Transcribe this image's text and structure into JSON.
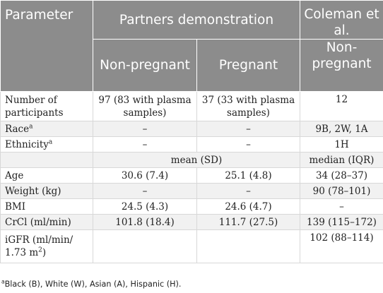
{
  "header": {
    "parameter": "Parameter",
    "partners": "Partners demonstration",
    "coleman": "Coleman et al.",
    "non_pregnant": "Non-pregnant",
    "pregnant": "Pregnant",
    "coleman_sub": "Non-pregnant"
  },
  "rows": {
    "participants": {
      "label": "Number of participants",
      "non_pregnant": "97 (83 with plasma samples)",
      "pregnant": "37 (33 with plasma samples)",
      "coleman": "12"
    },
    "race": {
      "label": "Race",
      "label_sup": "a",
      "non_pregnant": "–",
      "pregnant": "–",
      "coleman": "9B, 2W, 1A"
    },
    "ethnicity": {
      "label": "Ethnicity",
      "label_sup": "a",
      "non_pregnant": "–",
      "pregnant": "–",
      "coleman": "1H"
    },
    "stat_type": {
      "partners": "mean (SD)",
      "coleman": "median (IQR)"
    },
    "age": {
      "label": "Age",
      "non_pregnant": "30.6 (7.4)",
      "pregnant": "25.1 (4.8)",
      "coleman": "34 (28–37)"
    },
    "weight": {
      "label": "Weight (kg)",
      "non_pregnant": "–",
      "pregnant": "–",
      "coleman": "90 (78–101)"
    },
    "bmi": {
      "label": "BMI",
      "non_pregnant": "24.5 (4.3)",
      "pregnant": "24.6 (4.7)",
      "coleman": "–"
    },
    "crcl": {
      "label": "CrCl (ml/min)",
      "non_pregnant": "101.8 (18.4)",
      "pregnant": "111.7 (27.5)",
      "coleman": "139 (115–172)"
    },
    "igfr": {
      "label_line1": "iGFR (ml/min/",
      "label_line2": "1.73 m",
      "label_sup": "2",
      "label_close": ")",
      "non_pregnant": "",
      "pregnant": "",
      "coleman": "102 (88–114)"
    }
  },
  "footnote": {
    "marker": "a",
    "text": "Black (B), White (W), Asian (A), Hispanic (H)."
  }
}
